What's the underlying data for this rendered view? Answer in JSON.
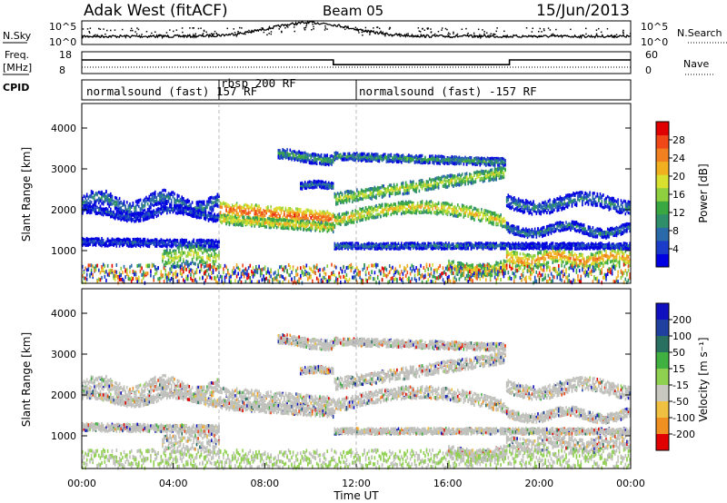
{
  "header": {
    "title": "Adak West (fitACF)",
    "beam": "Beam 05",
    "date": "15/Jun/2013"
  },
  "top_panels": {
    "nsky_label": "N.Sky",
    "nsearch_label": "N.Search",
    "noise_ticks": [
      "10^5",
      "10^0"
    ],
    "freq_label_line1": "Freq.",
    "freq_label_line2": "[MHz]",
    "freq_ticks": [
      "18",
      "8"
    ],
    "nave_label": "Nave",
    "nave_ticks": [
      "60",
      "0"
    ],
    "cpid_label": "CPID",
    "cpid_segments": [
      {
        "text": "normalsound (fast) 157 RF",
        "start": 0
      },
      {
        "text": "rbsp 200 RF",
        "start": 6
      },
      {
        "text": "normalsound (fast) -157 RF",
        "start": 12
      }
    ]
  },
  "chart_data": [
    {
      "type": "heatmap",
      "name": "power",
      "ylabel": "Slant Range [km]",
      "xlabel": "Time UT",
      "x_ticks": [
        "00:00",
        "04:00",
        "08:00",
        "12:00",
        "16:00",
        "20:00",
        "00:00"
      ],
      "y_ticks": [
        1000,
        2000,
        3000,
        4000
      ],
      "ylim": [
        200,
        4600
      ],
      "xlim": [
        0,
        24
      ],
      "colorbar_label": "Power [dB]",
      "colorbar_ticks": [
        4,
        8,
        12,
        16,
        20,
        24,
        28
      ],
      "colorbar_range": [
        0,
        32
      ]
    },
    {
      "type": "heatmap",
      "name": "velocity",
      "ylabel": "Slant Range [km]",
      "xlabel": "Time UT",
      "x_ticks": [
        "00:00",
        "04:00",
        "08:00",
        "12:00",
        "16:00",
        "20:00",
        "00:00"
      ],
      "y_ticks": [
        1000,
        2000,
        3000,
        4000
      ],
      "ylim": [
        200,
        4600
      ],
      "xlim": [
        0,
        24
      ],
      "colorbar_label": "Velocity [m s⁻¹]",
      "colorbar_ticks": [
        200,
        100,
        50,
        15,
        -15,
        -50,
        -100,
        -200
      ]
    }
  ],
  "colors": {
    "power_scale": [
      "#0000e0",
      "#1a3cc8",
      "#2a6aa8",
      "#2f8f6a",
      "#3aa840",
      "#8fd040",
      "#d8e030",
      "#f0b020",
      "#f08020",
      "#f04818",
      "#e00000"
    ],
    "velocity_scale": [
      "#e00000",
      "#f04818",
      "#f09020",
      "#f0c040",
      "#c8c8c0",
      "#c8c8c0",
      "#90d050",
      "#40b040",
      "#2a7060",
      "#2040a0",
      "#1010c0"
    ],
    "ground_scatter": "#c0c0bc"
  }
}
